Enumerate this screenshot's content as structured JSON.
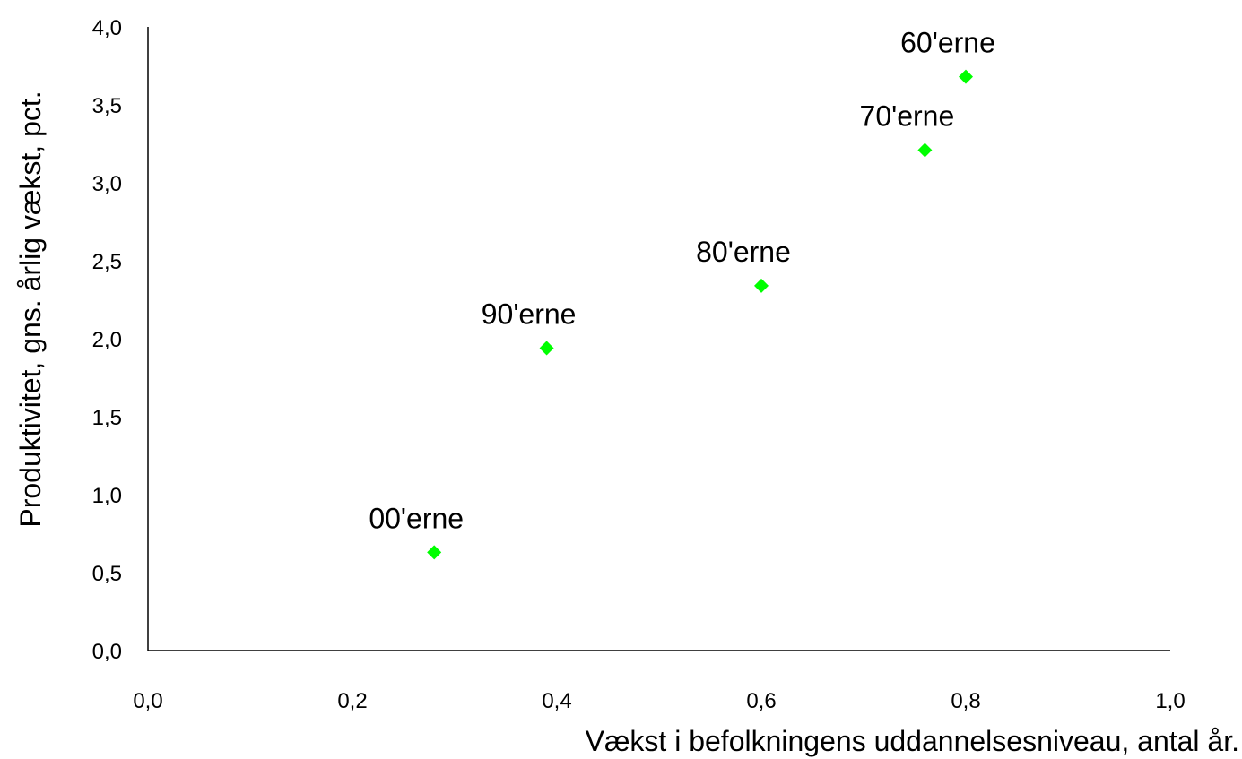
{
  "chart_data": {
    "type": "scatter",
    "xlabel": "Vækst i befolkningens uddannelsesniveau, antal år.",
    "ylabel": "Produktivitet, gns. årlig vækst, pct.",
    "xlim": [
      0.0,
      1.0
    ],
    "ylim": [
      0.0,
      4.0
    ],
    "x_ticks": [
      "0,0",
      "0,2",
      "0,4",
      "0,6",
      "0,8",
      "1,0"
    ],
    "y_ticks": [
      "0,0",
      "0,5",
      "1,0",
      "1,5",
      "2,0",
      "2,5",
      "3,0",
      "3,5",
      "4,0"
    ],
    "grid": false,
    "marker": "diamond",
    "marker_color": "#00ff00",
    "points": [
      {
        "label": "00'erne",
        "x": 0.28,
        "y": 0.63
      },
      {
        "label": "90'erne",
        "x": 0.39,
        "y": 1.94
      },
      {
        "label": "80'erne",
        "x": 0.6,
        "y": 2.34
      },
      {
        "label": "70'erne",
        "x": 0.76,
        "y": 3.21
      },
      {
        "label": "60'erne",
        "x": 0.8,
        "y": 3.68
      }
    ]
  }
}
